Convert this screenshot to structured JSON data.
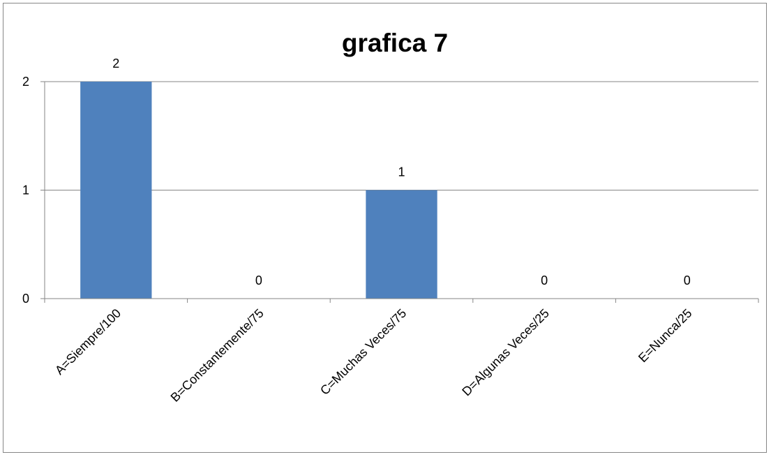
{
  "chart_data": {
    "type": "bar",
    "title": "grafica 7",
    "categories": [
      "A=Siempre/100",
      "B=Constantemente/75",
      "C=Muchas Veces/75",
      "D=Algunas Veces/25",
      "E=Nunca/25"
    ],
    "values": [
      2,
      0,
      1,
      0,
      0
    ],
    "data_labels": [
      "2",
      "0",
      "1",
      "0",
      "0"
    ],
    "ylim": [
      0,
      2
    ],
    "yticks": [
      "0",
      "1",
      "2"
    ],
    "grid": true,
    "legend": "none",
    "colors": {
      "bar": "#4f81bd",
      "gridline": "#868686",
      "axis": "#868686"
    }
  }
}
